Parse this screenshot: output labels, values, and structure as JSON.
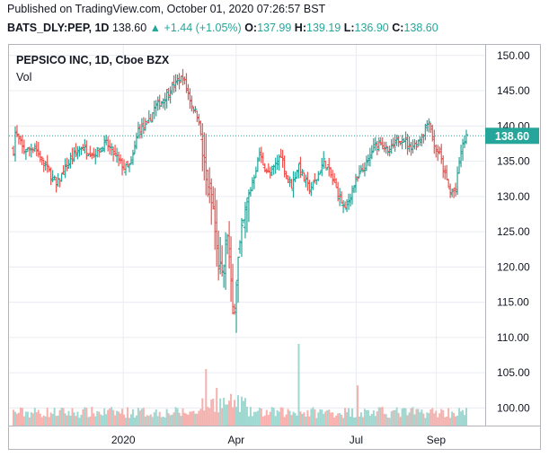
{
  "header": {
    "published": "Published on TradingView.com, October 01, 2020 07:26:57 BST",
    "symbol": "BATS_DLY:PEP, 1D",
    "last": "138.60",
    "change_arrow": "▲",
    "change": "+1.44 (+1.05%)",
    "o_label": "O:",
    "o_value": "137.99",
    "h_label": "H:",
    "h_value": "139.19",
    "l_label": "L:",
    "l_value": "136.90",
    "c_label": "C:",
    "c_value": "138.60"
  },
  "chart_data": {
    "type": "ohlc",
    "title": "PEPSICO INC, 1D, Cboe BZX",
    "volume_label": "Vol",
    "price_ticks": [
      "150.00",
      "145.00",
      "140.00",
      "135.00",
      "130.00",
      "125.00",
      "120.00",
      "115.00",
      "110.00",
      "105.00",
      "100.00"
    ],
    "ylim": [
      97.5,
      151.5
    ],
    "x_ticks": [
      "2020",
      "Apr",
      "Jul",
      "Sep"
    ],
    "last_price_label": "138.60",
    "last_price": 138.6,
    "grid": true,
    "colors": {
      "up": "#26a69a",
      "down": "#ef5350",
      "up_vol": "#9fd8d1",
      "down_vol": "#f6b1ae",
      "grid": "#e9ecf2",
      "last_line": "#26a69a"
    },
    "anchors": [
      [
        0,
        136.5
      ],
      [
        1,
        139.0
      ],
      [
        6,
        136.5
      ],
      [
        12,
        137.0
      ],
      [
        15,
        135.5
      ],
      [
        19,
        134.0
      ],
      [
        24,
        131.5
      ],
      [
        28,
        133.5
      ],
      [
        33,
        135.5
      ],
      [
        38,
        137.0
      ],
      [
        45,
        136.0
      ],
      [
        52,
        137.5
      ],
      [
        58,
        135.5
      ],
      [
        62,
        134.0
      ],
      [
        66,
        134.5
      ],
      [
        70,
        139.5
      ],
      [
        75,
        140.0
      ],
      [
        79,
        142.5
      ],
      [
        83,
        143.5
      ],
      [
        89,
        145.5
      ],
      [
        95,
        147.0
      ],
      [
        100,
        143.0
      ],
      [
        104,
        141.0
      ],
      [
        106,
        136.0
      ],
      [
        108,
        132.0
      ],
      [
        110,
        130.0
      ],
      [
        112,
        128.0
      ],
      [
        114,
        122.0
      ],
      [
        117,
        118.0
      ],
      [
        120,
        125.0
      ],
      [
        123,
        113.0
      ],
      [
        126,
        121.0
      ],
      [
        129,
        126.0
      ],
      [
        132,
        130.0
      ],
      [
        135,
        133.0
      ],
      [
        138,
        136.0
      ],
      [
        141,
        134.0
      ],
      [
        144,
        133.0
      ],
      [
        147,
        134.5
      ],
      [
        150,
        136.0
      ],
      [
        153,
        133.0
      ],
      [
        156,
        131.5
      ],
      [
        160,
        134.5
      ],
      [
        163,
        132.5
      ],
      [
        166,
        131.0
      ],
      [
        170,
        132.5
      ],
      [
        174,
        135.0
      ],
      [
        178,
        133.0
      ],
      [
        182,
        130.5
      ],
      [
        186,
        128.0
      ],
      [
        190,
        131.0
      ],
      [
        194,
        133.0
      ],
      [
        198,
        134.5
      ],
      [
        202,
        137.0
      ],
      [
        206,
        138.0
      ],
      [
        210,
        136.0
      ],
      [
        214,
        137.5
      ],
      [
        218,
        138.5
      ],
      [
        222,
        137.0
      ],
      [
        226,
        137.5
      ],
      [
        230,
        139.0
      ],
      [
        233,
        141.0
      ],
      [
        236,
        137.0
      ],
      [
        239,
        136.0
      ],
      [
        242,
        133.0
      ],
      [
        245,
        130.5
      ],
      [
        248,
        131.0
      ],
      [
        251,
        136.5
      ],
      [
        254,
        138.6
      ]
    ],
    "volume_spikes": [
      [
        108,
        4.5
      ],
      [
        114,
        3.0
      ],
      [
        160,
        6.5
      ],
      [
        193,
        3.2
      ]
    ]
  }
}
